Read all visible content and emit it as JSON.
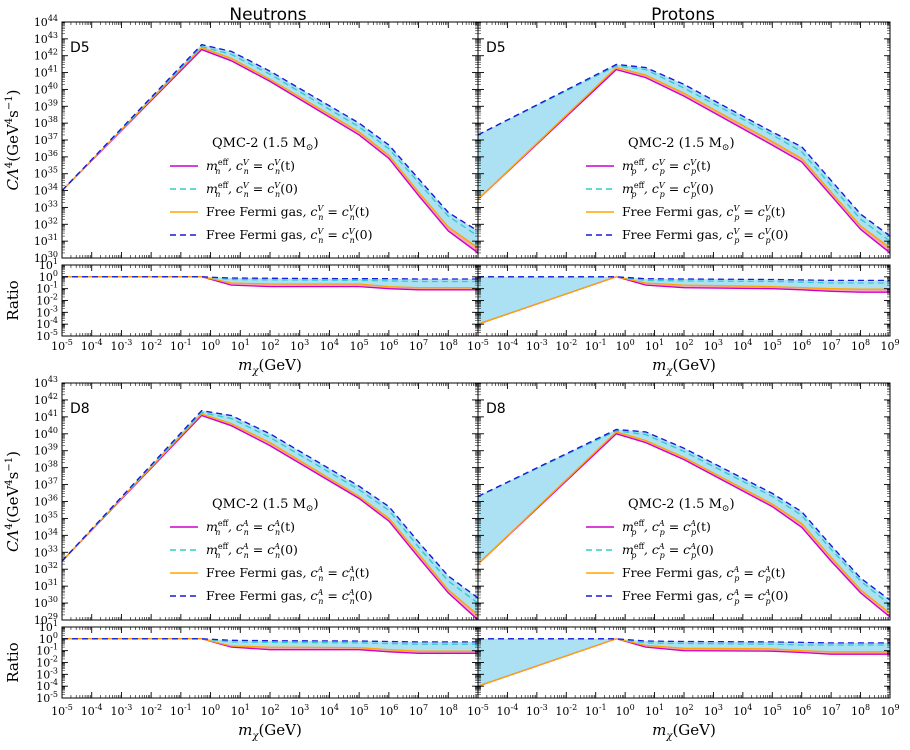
{
  "colors": {
    "magenta": "#cc00cc",
    "cyan": "#33cccc",
    "orange": "#ffa500",
    "blue": "#1a1ad9",
    "fill_blue": "#abe1f3",
    "fill_pink": "#f5a6b4"
  },
  "column_titles": [
    "Neutrons",
    "Protons"
  ],
  "axis_labels": {
    "xlabel": "m",
    "xlabel_sub": "χ",
    "xlabel_unit": "(GeV)",
    "ylabel_main": "CΛ",
    "ylabel_main_sup": "4",
    "ylabel_main_unit": "(GeV",
    "ylabel_main_unit_sup": "4",
    "ylabel_main_unit_s": "s",
    "ylabel_main_unit_s_sup": "−1",
    "ylabel_main_unit_close": ")",
    "ylabel_ratio": "Ratio"
  },
  "chart_data": [
    {
      "type": "line",
      "panel": "D5-neutrons",
      "tag": "D5",
      "xscale": "log",
      "yscale": "log",
      "xlim": [
        1e-05,
        1000000000.0
      ],
      "ylim": [
        1e+30,
        1e+44
      ],
      "ratio_ylim": [
        1e-05,
        10
      ],
      "legend_title": "QMC-2 (1.5 M",
      "legend_title_sun": "⊙",
      "legend_title_end": ")",
      "legend_position": "center-right",
      "series": [
        {
          "name": "m",
          "name_sup": "eff",
          "name_sub": "n",
          "cond": ", c",
          "cond_sup": "V",
          "cond_sub": "n",
          "cond_eq": " = c",
          "cond_rhs_sup": "V",
          "cond_rhs_sub": "n",
          "cond_arg": "(t)",
          "color": "magenta",
          "dash": "solid",
          "x": [
            1e-05,
            0.5,
            5.0,
            100.0,
            100000.0,
            1000000.0,
            10000000.0,
            100000000.0,
            1000000000.0
          ],
          "y": [
            1e+34,
            2.3e+42,
            5e+41,
            3e+40,
            2e+37,
            8e+35,
            5e+33,
            4e+31,
            2e+30
          ],
          "ratio": [
            1,
            1,
            0.2,
            0.15,
            0.15,
            0.1,
            0.08,
            0.08,
            0.08
          ]
        },
        {
          "name": "m",
          "name_sup": "eff",
          "name_sub": "n",
          "cond": ", c",
          "cond_sup": "V",
          "cond_sub": "n",
          "cond_eq": " = c",
          "cond_rhs_sup": "V",
          "cond_rhs_sub": "n",
          "cond_arg": "(0)",
          "color": "cyan",
          "dash": "dashed",
          "x": [
            1e-05,
            0.5,
            5.0,
            100.0,
            100000.0,
            1000000.0,
            10000000.0,
            100000000.0,
            1000000000.0
          ],
          "y": [
            1e+34,
            3.5e+42,
            1.2e+42,
            8e+40,
            6e+37,
            3e+36,
            3e+34,
            3e+32,
            2e+31
          ],
          "ratio": [
            1,
            1,
            0.6,
            0.55,
            0.5,
            0.45,
            0.4,
            0.4,
            0.4
          ]
        },
        {
          "name": "Free Fermi gas",
          "name_sup": "",
          "name_sub": "",
          "cond": ", c",
          "cond_sup": "V",
          "cond_sub": "n",
          "cond_eq": " = c",
          "cond_rhs_sup": "V",
          "cond_rhs_sub": "n",
          "cond_arg": "(t)",
          "color": "orange",
          "dash": "solid",
          "x": [
            1e-05,
            0.5,
            5.0,
            100.0,
            100000.0,
            1000000.0,
            10000000.0,
            100000000.0,
            1000000000.0
          ],
          "y": [
            1e+34,
            3e+42,
            7e+41,
            4e+40,
            3e+37,
            1.2e+36,
            8e+33,
            7e+31,
            4e+30
          ],
          "ratio": [
            1,
            1,
            0.3,
            0.25,
            0.25,
            0.15,
            0.12,
            0.12,
            0.12
          ]
        },
        {
          "name": "Free Fermi gas",
          "name_sup": "",
          "name_sub": "",
          "cond": ", c",
          "cond_sup": "V",
          "cond_sub": "n",
          "cond_eq": " = c",
          "cond_rhs_sup": "V",
          "cond_rhs_sub": "n",
          "cond_arg": "(0)",
          "color": "blue",
          "dash": "dashed",
          "x": [
            1e-05,
            0.5,
            5.0,
            100.0,
            100000.0,
            1000000.0,
            10000000.0,
            100000000.0,
            1000000000.0
          ],
          "y": [
            1e+34,
            4.5e+42,
            1.8e+42,
            1.2e+41,
            1e+38,
            5e+36,
            5e+34,
            5e+32,
            4e+31
          ],
          "ratio": [
            1,
            1,
            0.8,
            0.75,
            0.7,
            0.7,
            0.65,
            0.65,
            0.65
          ]
        }
      ]
    },
    {
      "type": "line",
      "panel": "D5-protons",
      "tag": "D5",
      "xscale": "log",
      "yscale": "log",
      "xlim": [
        1e-05,
        1000000000.0
      ],
      "ylim": [
        1e+30,
        1e+44
      ],
      "ratio_ylim": [
        1e-05,
        10
      ],
      "legend_title": "QMC-2 (1.5 M",
      "legend_title_sun": "⊙",
      "legend_title_end": ")",
      "legend_position": "center-right",
      "series": [
        {
          "name": "m",
          "name_sup": "eff",
          "name_sub": "p",
          "cond": ", c",
          "cond_sup": "V",
          "cond_sub": "p",
          "cond_eq": " = c",
          "cond_rhs_sup": "V",
          "cond_rhs_sub": "p",
          "cond_arg": "(t)",
          "color": "magenta",
          "dash": "solid",
          "x": [
            1e-05,
            0.5,
            5.0,
            100.0,
            100000.0,
            1000000.0,
            10000000.0,
            100000000.0,
            1000000000.0
          ],
          "y": [
            3e+33,
            1.5e+41,
            5e+40,
            4e+39,
            5e+36,
            5e+35,
            5e+33,
            5e+31,
            2e+30
          ],
          "ratio": [
            0.0001,
            1,
            0.2,
            0.12,
            0.1,
            0.08,
            0.06,
            0.05,
            0.05
          ]
        },
        {
          "name": "m",
          "name_sup": "eff",
          "name_sub": "p",
          "cond": ", c",
          "cond_sup": "V",
          "cond_sub": "p",
          "cond_eq": " = c",
          "cond_rhs_sup": "V",
          "cond_rhs_sub": "p",
          "cond_arg": "(0)",
          "color": "cyan",
          "dash": "dashed",
          "x": [
            1e-05,
            0.5,
            5.0,
            100.0,
            100000.0,
            1000000.0,
            10000000.0,
            100000000.0,
            1000000000.0
          ],
          "y": [
            2e+37,
            2.5e+41,
            1.5e+41,
            1.2e+40,
            2e+37,
            2e+36,
            2e+34,
            2e+32,
            1e+31
          ],
          "ratio": [
            1,
            1,
            0.5,
            0.45,
            0.4,
            0.35,
            0.3,
            0.3,
            0.3
          ]
        },
        {
          "name": "Free Fermi gas",
          "name_sup": "",
          "name_sub": "",
          "cond": ", c",
          "cond_sup": "V",
          "cond_sub": "p",
          "cond_eq": " = c",
          "cond_rhs_sup": "V",
          "cond_rhs_sub": "p",
          "cond_arg": "(t)",
          "color": "orange",
          "dash": "solid",
          "x": [
            1e-05,
            0.5,
            5.0,
            100.0,
            100000.0,
            1000000.0,
            10000000.0,
            100000000.0,
            1000000000.0
          ],
          "y": [
            3e+33,
            2e+41,
            7e+40,
            6e+39,
            8e+36,
            8e+35,
            8e+33,
            8e+31,
            4e+30
          ],
          "ratio": [
            0.0001,
            1,
            0.3,
            0.2,
            0.15,
            0.12,
            0.1,
            0.09,
            0.09
          ]
        },
        {
          "name": "Free Fermi gas",
          "name_sup": "",
          "name_sub": "",
          "cond": ", c",
          "cond_sup": "V",
          "cond_sub": "p",
          "cond_eq": " = c",
          "cond_rhs_sup": "V",
          "cond_rhs_sub": "p",
          "cond_arg": "(0)",
          "color": "blue",
          "dash": "dashed",
          "x": [
            1e-05,
            0.5,
            5.0,
            100.0,
            100000.0,
            1000000.0,
            10000000.0,
            100000000.0,
            1000000000.0
          ],
          "y": [
            2e+37,
            3e+41,
            2e+41,
            2e+40,
            3e+37,
            4e+36,
            4e+34,
            4e+32,
            2e+31
          ],
          "ratio": [
            1,
            1,
            0.7,
            0.65,
            0.6,
            0.55,
            0.5,
            0.5,
            0.5
          ]
        }
      ]
    },
    {
      "type": "line",
      "panel": "D8-neutrons",
      "tag": "D8",
      "xscale": "log",
      "yscale": "log",
      "xlim": [
        1e-05,
        1000000000.0
      ],
      "ylim": [
        1e+29,
        1e+43
      ],
      "ratio_ylim": [
        1e-05,
        10
      ],
      "legend_title": "QMC-2 (1.5 M",
      "legend_title_sun": "⊙",
      "legend_title_end": ")",
      "legend_position": "center-right",
      "series": [
        {
          "name": "m",
          "name_sup": "eff",
          "name_sub": "n",
          "cond": ", c",
          "cond_sup": "A",
          "cond_sub": "n",
          "cond_eq": " = c",
          "cond_rhs_sup": "A",
          "cond_rhs_sub": "n",
          "cond_arg": "(t)",
          "color": "magenta",
          "dash": "solid",
          "x": [
            1e-05,
            0.5,
            5.0,
            100.0,
            100000.0,
            1000000.0,
            10000000.0,
            100000000.0,
            1000000000.0
          ],
          "y": [
            3e+32,
            1.2e+41,
            3e+40,
            2e+39,
            1.5e+36,
            7e+34,
            5e+32,
            4e+30,
            1e+29
          ],
          "ratio": [
            1,
            1,
            0.2,
            0.12,
            0.12,
            0.08,
            0.06,
            0.06,
            0.06
          ]
        },
        {
          "name": "m",
          "name_sup": "eff",
          "name_sub": "n",
          "cond": ", c",
          "cond_sup": "A",
          "cond_sub": "n",
          "cond_eq": " = c",
          "cond_rhs_sup": "A",
          "cond_rhs_sub": "n",
          "cond_arg": "(0)",
          "color": "cyan",
          "dash": "dashed",
          "x": [
            1e-05,
            0.5,
            5.0,
            100.0,
            100000.0,
            1000000.0,
            10000000.0,
            100000000.0,
            1000000000.0
          ],
          "y": [
            3e+32,
            1.8e+41,
            8e+40,
            6e+39,
            5e+36,
            3e+35,
            2e+33,
            2e+31,
            1e+30
          ],
          "ratio": [
            1,
            1,
            0.55,
            0.5,
            0.45,
            0.4,
            0.35,
            0.35,
            0.35
          ]
        },
        {
          "name": "Free Fermi gas",
          "name_sup": "",
          "name_sub": "",
          "cond": ", c",
          "cond_sup": "A",
          "cond_sub": "n",
          "cond_eq": " = c",
          "cond_rhs_sup": "A",
          "cond_rhs_sub": "n",
          "cond_arg": "(t)",
          "color": "orange",
          "dash": "solid",
          "x": [
            1e-05,
            0.5,
            5.0,
            100.0,
            100000.0,
            1000000.0,
            10000000.0,
            100000000.0,
            1000000000.0
          ],
          "y": [
            3e+32,
            1.5e+41,
            4e+40,
            3e+39,
            2e+36,
            1e+35,
            8e+32,
            6e+30,
            2e+29
          ],
          "ratio": [
            1,
            1,
            0.25,
            0.2,
            0.18,
            0.12,
            0.09,
            0.09,
            0.09
          ]
        },
        {
          "name": "Free Fermi gas",
          "name_sup": "",
          "name_sub": "",
          "cond": ", c",
          "cond_sup": "A",
          "cond_sub": "n",
          "cond_eq": " = c",
          "cond_rhs_sup": "A",
          "cond_rhs_sub": "n",
          "cond_arg": "(0)",
          "color": "blue",
          "dash": "dashed",
          "x": [
            1e-05,
            0.5,
            5.0,
            100.0,
            100000.0,
            1000000.0,
            10000000.0,
            100000000.0,
            1000000000.0
          ],
          "y": [
            3e+32,
            2.3e+41,
            1.2e+41,
            1e+40,
            8e+36,
            5e+35,
            4e+33,
            4e+31,
            2e+30
          ],
          "ratio": [
            1,
            1,
            0.75,
            0.7,
            0.65,
            0.6,
            0.55,
            0.55,
            0.55
          ]
        }
      ]
    },
    {
      "type": "line",
      "panel": "D8-protons",
      "tag": "D8",
      "xscale": "log",
      "yscale": "log",
      "xlim": [
        1e-05,
        1000000000.0
      ],
      "ylim": [
        1e+29,
        1e+43
      ],
      "ratio_ylim": [
        1e-05,
        10
      ],
      "legend_title": "QMC-2 (1.5 M",
      "legend_title_sun": "⊙",
      "legend_title_end": ")",
      "legend_position": "center-right",
      "series": [
        {
          "name": "m",
          "name_sup": "eff",
          "name_sub": "p",
          "cond": ", c",
          "cond_sup": "A",
          "cond_sub": "p",
          "cond_eq": " = c",
          "cond_rhs_sup": "A",
          "cond_rhs_sub": "p",
          "cond_arg": "(t)",
          "color": "magenta",
          "dash": "solid",
          "x": [
            1e-05,
            0.5,
            5.0,
            100.0,
            100000.0,
            1000000.0,
            10000000.0,
            100000000.0,
            1000000000.0
          ],
          "y": [
            2e+32,
            1e+40,
            3e+39,
            3e+38,
            5e+35,
            3e+34,
            3e+32,
            4e+30,
            1.5e+29
          ],
          "ratio": [
            0.0001,
            1,
            0.2,
            0.1,
            0.09,
            0.07,
            0.05,
            0.05,
            0.05
          ]
        },
        {
          "name": "m",
          "name_sup": "eff",
          "name_sub": "p",
          "cond": ", c",
          "cond_sup": "A",
          "cond_sub": "p",
          "cond_eq": " = c",
          "cond_rhs_sup": "A",
          "cond_rhs_sub": "p",
          "cond_arg": "(0)",
          "color": "cyan",
          "dash": "dashed",
          "x": [
            1e-05,
            0.5,
            5.0,
            100.0,
            100000.0,
            1000000.0,
            10000000.0,
            100000000.0,
            1000000000.0
          ],
          "y": [
            2e+36,
            1.5e+40,
            9e+39,
            9e+38,
            2e+36,
            1.5e+35,
            1.5e+33,
            2e+31,
            8e+29
          ],
          "ratio": [
            1,
            1,
            0.45,
            0.4,
            0.35,
            0.3,
            0.3,
            0.3,
            0.3
          ]
        },
        {
          "name": "Free Fermi gas",
          "name_sup": "",
          "name_sub": "",
          "cond": ", c",
          "cond_sup": "A",
          "cond_sub": "p",
          "cond_eq": " = c",
          "cond_rhs_sup": "A",
          "cond_rhs_sub": "p",
          "cond_arg": "(t)",
          "color": "orange",
          "dash": "solid",
          "x": [
            1e-05,
            0.5,
            5.0,
            100.0,
            100000.0,
            1000000.0,
            10000000.0,
            100000000.0,
            1000000000.0
          ],
          "y": [
            2e+32,
            1.3e+40,
            4e+39,
            4e+38,
            7e+35,
            5e+34,
            5e+32,
            6e+30,
            2.5e+29
          ],
          "ratio": [
            0.0001,
            1,
            0.28,
            0.16,
            0.14,
            0.1,
            0.08,
            0.08,
            0.08
          ]
        },
        {
          "name": "Free Fermi gas",
          "name_sup": "",
          "name_sub": "",
          "cond": ", c",
          "cond_sup": "A",
          "cond_sub": "p",
          "cond_eq": " = c",
          "cond_rhs_sup": "A",
          "cond_rhs_sub": "p",
          "cond_arg": "(0)",
          "color": "blue",
          "dash": "dashed",
          "x": [
            1e-05,
            0.5,
            5.0,
            100.0,
            100000.0,
            1000000.0,
            10000000.0,
            100000000.0,
            1000000000.0
          ],
          "y": [
            2e+36,
            1.8e+40,
            1.3e+40,
            1.4e+39,
            3e+36,
            2.5e+35,
            2.5e+33,
            3e+31,
            1.5e+30
          ],
          "ratio": [
            1,
            1,
            0.65,
            0.6,
            0.55,
            0.5,
            0.45,
            0.45,
            0.45
          ]
        }
      ]
    }
  ]
}
